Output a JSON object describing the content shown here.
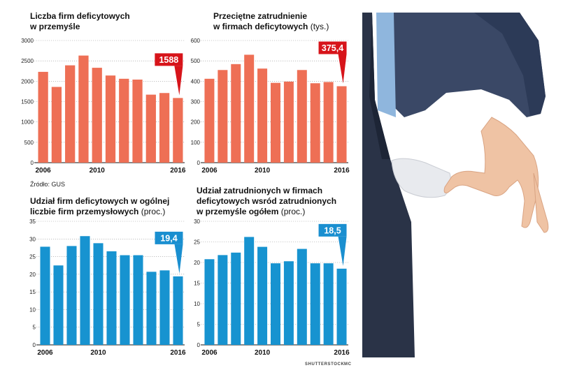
{
  "source_label": "Źródło: GUS",
  "credits": {
    "photo": "SHUTTERSTOCK",
    "author": "MC"
  },
  "photo": {
    "description_icon": "empty-pocket-photo"
  },
  "colors": {
    "orange": "#ee6f55",
    "blue": "#1793d0",
    "callout_red": "#d7141a",
    "callout_blue": "#1a8fd0"
  },
  "panels": [
    {
      "title_line1": "Liczba firm deficytowych",
      "title_line2": "w przemyśle",
      "title_line3": "",
      "unit": "",
      "callout": "1588"
    },
    {
      "title_line1": "Przeciętne zatrudnienie",
      "title_line2": "w firmach deficytowych",
      "title_line3": "",
      "unit": "(tys.)",
      "callout": "375,4"
    },
    {
      "title_line1": "Udział firm deficytowych w ogólnej",
      "title_line2": "liczbie firm przemysłowych",
      "title_line3": "",
      "unit": "(proc.)",
      "callout": "19,4"
    },
    {
      "title_line1": "Udział zatrudnionych w firmach",
      "title_line2": "deficytowych wsród zatrudnionych",
      "title_line3": "w przemyśle ogółem",
      "unit": "(proc.)",
      "callout": "18,5"
    }
  ],
  "chart_data": [
    {
      "type": "bar",
      "title": "Liczba firm deficytowych w przemyśle",
      "x": [
        2006,
        2007,
        2008,
        2009,
        2010,
        2011,
        2012,
        2013,
        2014,
        2015,
        2016
      ],
      "x_tick_labels": [
        "2006",
        "2010",
        "2016"
      ],
      "values": [
        2230,
        1860,
        2390,
        2630,
        2330,
        2140,
        2060,
        2040,
        1670,
        1710,
        1588
      ],
      "y_ticks": [
        0,
        500,
        1000,
        1500,
        2000,
        2500,
        3000
      ],
      "y_tick_labels": [
        "0",
        "500",
        "1000",
        "1500",
        "2000",
        "2500",
        "3000"
      ],
      "ylim": [
        0,
        3000
      ],
      "grid": true,
      "color": "#ee6f55",
      "highlight_label": "1588"
    },
    {
      "type": "bar",
      "title": "Przeciętne zatrudnienie w firmach deficytowych (tys.)",
      "x": [
        2006,
        2007,
        2008,
        2009,
        2010,
        2011,
        2012,
        2013,
        2014,
        2015,
        2016
      ],
      "x_tick_labels": [
        "2006",
        "2010",
        "2016"
      ],
      "values": [
        412,
        455,
        484,
        530,
        462,
        392,
        398,
        455,
        390,
        396,
        375.4
      ],
      "y_ticks": [
        0,
        100,
        200,
        300,
        400,
        500,
        600
      ],
      "y_tick_labels": [
        "0",
        "100",
        "200",
        "300",
        "400",
        "500",
        "600"
      ],
      "ylim": [
        0,
        600
      ],
      "grid": true,
      "color": "#ee6f55",
      "highlight_label": "375,4"
    },
    {
      "type": "bar",
      "title": "Udział firm deficytowych w ogólnej liczbie firm przemysłowych (proc.)",
      "x": [
        2006,
        2007,
        2008,
        2009,
        2010,
        2011,
        2012,
        2013,
        2014,
        2015,
        2016
      ],
      "x_tick_labels": [
        "2006",
        "2010",
        "2016"
      ],
      "values": [
        27.8,
        22.5,
        28.0,
        30.8,
        28.8,
        26.5,
        25.4,
        25.4,
        20.7,
        21.1,
        19.4
      ],
      "y_ticks": [
        0,
        5,
        10,
        15,
        20,
        25,
        30,
        35
      ],
      "y_tick_labels": [
        "0",
        "5",
        "10",
        "15",
        "20",
        "25",
        "30",
        "35"
      ],
      "ylim": [
        0,
        35
      ],
      "grid": true,
      "color": "#1793d0",
      "highlight_label": "19,4"
    },
    {
      "type": "bar",
      "title": "Udział zatrudnionych w firmach deficytowych wsród zatrudnionych w przemyśle ogółem (proc.)",
      "x": [
        2006,
        2007,
        2008,
        2009,
        2010,
        2011,
        2012,
        2013,
        2014,
        2015,
        2016
      ],
      "x_tick_labels": [
        "2006",
        "2010",
        "2016"
      ],
      "values": [
        20.8,
        21.8,
        22.4,
        26.2,
        23.8,
        19.8,
        20.3,
        23.3,
        19.8,
        19.8,
        18.5
      ],
      "y_ticks": [
        0,
        5,
        10,
        15,
        20,
        25,
        30
      ],
      "y_tick_labels": [
        "0",
        "5",
        "10",
        "15",
        "20",
        "25",
        "30"
      ],
      "ylim": [
        0,
        30
      ],
      "grid": true,
      "color": "#1793d0",
      "highlight_label": "18,5"
    }
  ]
}
